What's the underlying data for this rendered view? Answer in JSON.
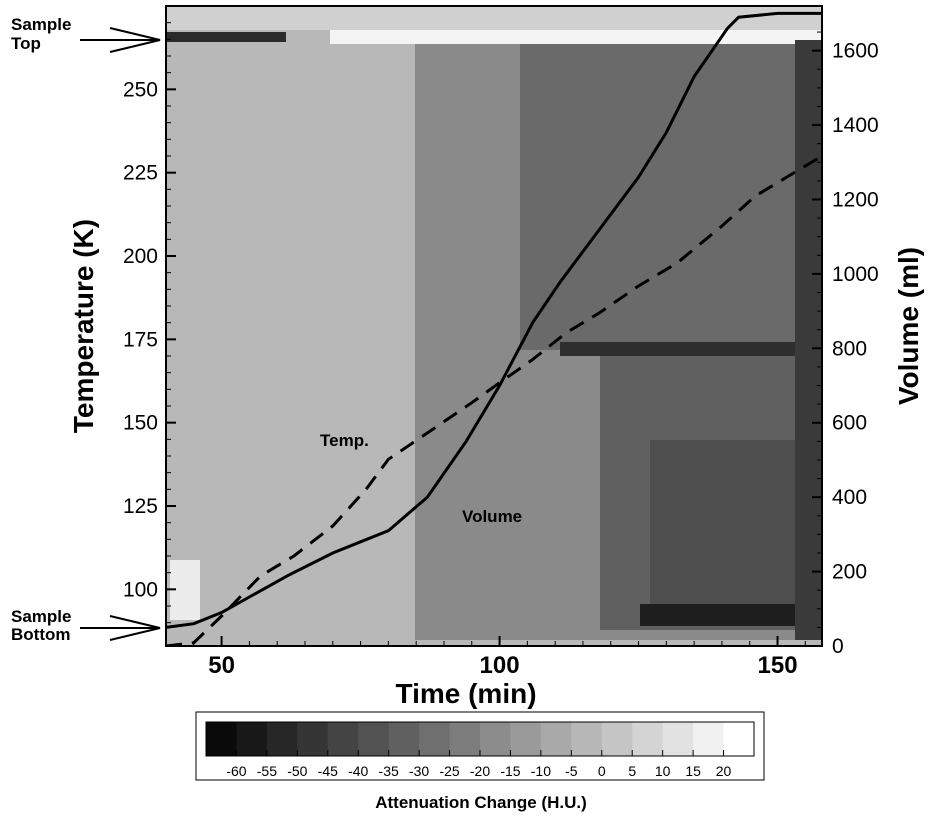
{
  "chart_data": {
    "type": "heatmap",
    "xlabel": "Time (min)",
    "ylabel": "Temperature (K)",
    "y2label": "Volume (ml)",
    "xlim": [
      40,
      158
    ],
    "ylim": [
      83,
      275
    ],
    "y2lim": [
      0,
      1720
    ],
    "x_ticks": [
      50,
      100,
      150
    ],
    "y_ticks": [
      100,
      125,
      150,
      175,
      200,
      225,
      250
    ],
    "y2_ticks": [
      0,
      200,
      400,
      600,
      800,
      1000,
      1200,
      1400,
      1600
    ],
    "heatmap_colormap": "grayscale",
    "colorbar": {
      "title": "Attenuation Change (H.U.)",
      "labels": [
        "-60",
        "-55",
        "-50",
        "-45",
        "-40",
        "-35",
        "-30",
        "-25",
        "-20",
        "-15",
        "-10",
        "-5",
        "0",
        "5",
        "10",
        "15",
        "20"
      ],
      "levels": [
        -65,
        -60,
        -55,
        -50,
        -45,
        -40,
        -35,
        -30,
        -25,
        -20,
        -15,
        -10,
        -5,
        0,
        5,
        10,
        15,
        20,
        25
      ],
      "placement": "bottom"
    },
    "series": [
      {
        "name": "Temp.",
        "style": "dashed",
        "axis": "left",
        "x": [
          40,
          45,
          50,
          57,
          63,
          70,
          76,
          80,
          88,
          95,
          100,
          106,
          112,
          118,
          125,
          132,
          140,
          146,
          152,
          158
        ],
        "y": [
          83,
          84,
          92,
          104,
          110,
          119,
          130,
          139,
          148,
          156,
          162,
          169,
          177,
          183,
          191,
          198,
          209,
          218,
          224,
          230
        ]
      },
      {
        "name": "Volume",
        "style": "solid",
        "axis": "right",
        "x": [
          40,
          45,
          50,
          56,
          62,
          70,
          75,
          80,
          87,
          94,
          100,
          106,
          111,
          116,
          120,
          125,
          130,
          135,
          141,
          143,
          150,
          158
        ],
        "y": [
          50,
          60,
          90,
          140,
          190,
          250,
          280,
          310,
          400,
          550,
          700,
          870,
          980,
          1080,
          1160,
          1260,
          1380,
          1530,
          1660,
          1690,
          1700,
          1700
        ]
      }
    ],
    "annotations": [
      {
        "text": "Temp.",
        "x": 78,
        "y": 143
      },
      {
        "text": "Volume",
        "x": 98,
        "y": 117
      },
      {
        "text": "Sample",
        "x": 30,
        "y": 275
      },
      {
        "text": "Top",
        "x": 30,
        "y": 271
      },
      {
        "text": "Sample",
        "x": 30,
        "y": 87
      },
      {
        "text": "Bottom",
        "x": 30,
        "y": 83
      }
    ]
  }
}
